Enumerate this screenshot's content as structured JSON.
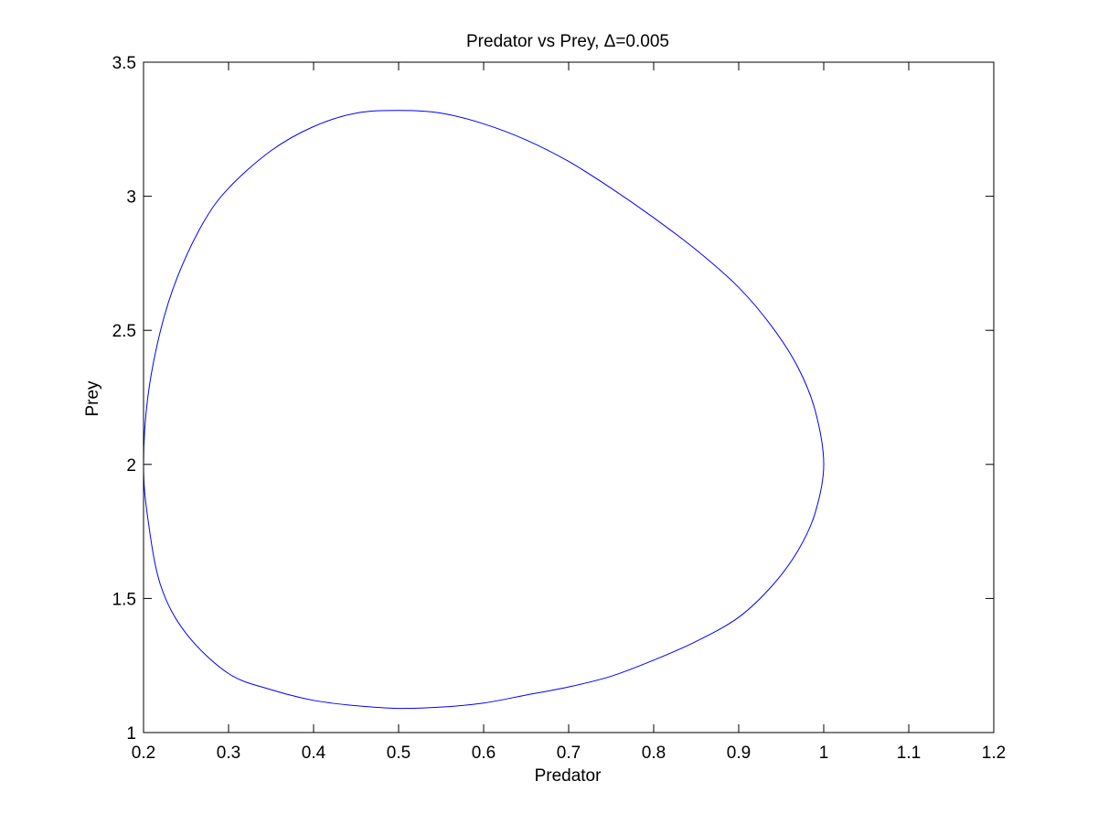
{
  "chart_data": {
    "type": "line",
    "title": "Predator vs Prey, Δ=0.005",
    "xlabel": "Predator",
    "ylabel": "Prey",
    "xlim": [
      0.2,
      1.2
    ],
    "ylim": [
      1,
      3.5
    ],
    "xticks": [
      "0.2",
      "0.3",
      "0.4",
      "0.5",
      "0.6",
      "0.7",
      "0.8",
      "0.9",
      "1",
      "1.1",
      "1.2"
    ],
    "yticks": [
      "1",
      "1.5",
      "2",
      "2.5",
      "3",
      "3.5"
    ],
    "grid": false,
    "line_color": "#0000ff",
    "series": [
      {
        "x": [
          1.0,
          0.99,
          0.97,
          0.94,
          0.9,
          0.85,
          0.8,
          0.75,
          0.7,
          0.65,
          0.6,
          0.55,
          0.5,
          0.45,
          0.4,
          0.35,
          0.3,
          0.27,
          0.24,
          0.22,
          0.205,
          0.2,
          0.205,
          0.22,
          0.25,
          0.3,
          0.35,
          0.4,
          0.45,
          0.5,
          0.55,
          0.6,
          0.65,
          0.7,
          0.75,
          0.8,
          0.85,
          0.9,
          0.94,
          0.97,
          0.99,
          1.0
        ],
        "y": [
          2.0,
          2.2,
          2.36,
          2.51,
          2.66,
          2.8,
          2.92,
          3.03,
          3.13,
          3.21,
          3.27,
          3.31,
          3.32,
          3.31,
          3.26,
          3.17,
          3.03,
          2.9,
          2.7,
          2.5,
          2.25,
          2.0,
          1.8,
          1.55,
          1.37,
          1.22,
          1.16,
          1.12,
          1.1,
          1.09,
          1.095,
          1.11,
          1.14,
          1.17,
          1.21,
          1.27,
          1.34,
          1.43,
          1.55,
          1.68,
          1.82,
          2.0
        ]
      }
    ]
  }
}
